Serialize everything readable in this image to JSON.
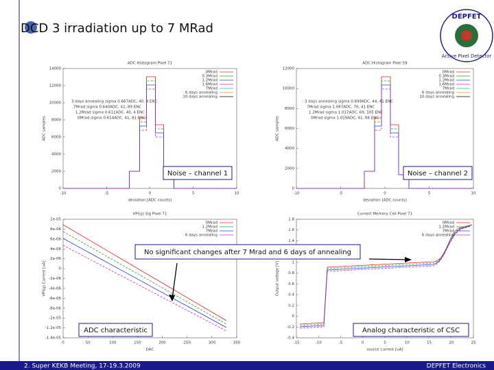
{
  "header": {
    "title": "DCD 3 irradiation up to 7 MRad",
    "logo_top": "DEPFET",
    "logo_bottom": "Active Pixel Detector"
  },
  "panels": [
    {
      "title": "ADC Histogram Pixel 71",
      "ylabel": "ADC samples",
      "xlabel": "deviation [ADC counts]",
      "yticks": [
        "14000",
        "12000",
        "10000",
        "8000",
        "6000",
        "4000",
        "2000",
        "0"
      ],
      "xticks": [
        "-10",
        "-5",
        "0",
        "5",
        "10"
      ],
      "legend": [
        "0Mrad",
        "0.3Mrad",
        "1.2Mrad",
        "1.6Mrad",
        "7Mrad",
        "6 days annealing",
        "10 days annealing"
      ],
      "notes": [
        "3 days annealing sigma 0.667ADC, 40, 4 ENC",
        "7Mrad sigma 0.640ADC, 42, 89 ENC",
        "1.2Mrad sigma 0.611ADC, 40, 4 ENC",
        "0Mrad sigma 0.614ADC, 41, 81 ENC"
      ],
      "callout": "Noise – channel 1"
    },
    {
      "title": "ADC Histogram Pixel 59",
      "ylabel": "ADC samples",
      "xlabel": "deviation [ADC counts]",
      "yticks": [
        "12000",
        "10000",
        "8000",
        "6000",
        "4000",
        "2000",
        "0"
      ],
      "xticks": [
        "-10",
        "-5",
        "0",
        "5",
        "10"
      ],
      "legend": [
        "0Mrad",
        "0.3Mrad",
        "1.2Mrad",
        "1.6Mrad",
        "7Mrad",
        "6 days annealing",
        "10 days annealing"
      ],
      "notes": [
        "3 days annealing sigma 0.699ADC, 44, 41 ENC",
        "7Mrad sigma 1.067ADC, 70, 41 ENC",
        "1.2Mrad sigma 1.017ADC, 69, 105 ENC",
        "0Mrad sigma 1.019ADC, 41, 86 ENC"
      ],
      "callout": "Noise – channel 2"
    },
    {
      "title": "VPI(g) Sig Pixel 71",
      "ylabel": "VPI(g) Current [uA]",
      "xlabel": "DAC",
      "yticks": [
        "1e-05",
        "8e-06",
        "6e-06",
        "4e-06",
        "2e-06",
        "0",
        "-2e-06",
        "-4e-06",
        "-6e-06",
        "-8e-06",
        "-1e-05",
        "-1.2e-05",
        "-1.4e-05"
      ],
      "xticks": [
        "0",
        "50",
        "100",
        "150",
        "200",
        "250",
        "300",
        "350"
      ],
      "legend": [
        "0Mrad",
        "1.2Mrad",
        "7Mrad",
        "6 days annealing"
      ],
      "notes": [],
      "callout": "ADC characteristic"
    },
    {
      "title": "Current Memory Cell Pixel 71",
      "ylabel": "Output voltage [V]",
      "xlabel": "source current [uA]",
      "yticks": [
        "1.8",
        "1.6",
        "1.4",
        "1.2",
        "1",
        "0.8",
        "0.6",
        "0.4",
        "0.2",
        "0",
        "-0.2",
        "-0.4"
      ],
      "xticks": [
        "-15",
        "-10",
        "-5",
        "0",
        "5",
        "10",
        "15",
        "20",
        "25"
      ],
      "legend": [
        "0Mrad",
        "1.2Mrad",
        "7Mrad",
        "6 days annealing"
      ],
      "notes": [],
      "callout": "Analog characteristic of CSC"
    }
  ],
  "center_callout": "No significant changes after 7 Mrad and 6 days of annealing",
  "footer": {
    "left": "2. Super KEKB Meeting, 17-19.3.2009",
    "right": "DEPFET Electronics"
  }
}
